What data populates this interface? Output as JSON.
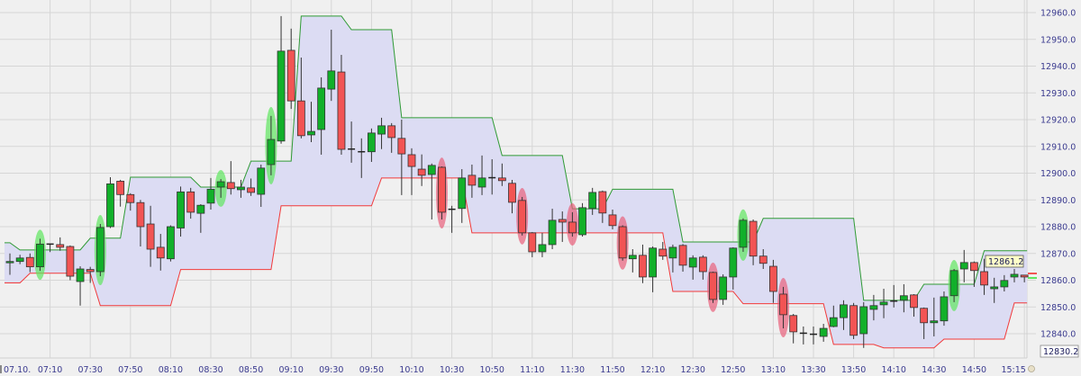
{
  "chart_data": {
    "type": "candlestick",
    "title": "",
    "date_label": "07.10.",
    "ylim": [
      12830,
      12963
    ],
    "y_ticks": [
      12840,
      12850,
      12860,
      12870,
      12880,
      12890,
      12900,
      12910,
      12920,
      12930,
      12940,
      12950,
      12960
    ],
    "y_tick_labels": [
      "12840.0",
      "12850.0",
      "12860.0",
      "12870.0",
      "12880.0",
      "12890.0",
      "12900.0",
      "12910.0",
      "12920.0",
      "12930.0",
      "12940.0",
      "12950.0",
      "12960.0"
    ],
    "x_tick_labels": [
      "07:10",
      "07:30",
      "07:50",
      "08:10",
      "08:30",
      "08:50",
      "09:10",
      "09:30",
      "09:50",
      "10:10",
      "10:30",
      "10:50",
      "11:10",
      "11:30",
      "11:50",
      "12:10",
      "12:30",
      "12:50",
      "13:10",
      "13:30",
      "13:50",
      "14:10",
      "14:30",
      "14:50",
      "15:15"
    ],
    "grid": true,
    "last_price_label": "12861.2",
    "low_price_label": "12830.2",
    "colors": {
      "up": "#12b02a",
      "down": "#f25454",
      "upper_band": "#2f9a35",
      "lower_band": "#f23a3a",
      "band_fill": "#dcdcf3",
      "highlight_up": "#5ee65e",
      "highlight_down": "#e8607a",
      "axis_text": "#3b3b8f",
      "background": "#f0f0f0",
      "grid": "#d6d6d6"
    },
    "ohlc_columns": [
      "time",
      "open",
      "high",
      "low",
      "close"
    ],
    "ohlc": [
      [
        "06:50",
        12866.5,
        12870,
        12862,
        12867
      ],
      [
        "06:55",
        12867,
        12869.5,
        12866,
        12868.3
      ],
      [
        "07:00",
        12868.5,
        12870,
        12863,
        12865
      ],
      [
        "07:05",
        12865,
        12875.5,
        12863.5,
        12873.5
      ],
      [
        "07:10",
        12873.3,
        12873.5,
        12870.5,
        12873.5
      ],
      [
        "07:15",
        12873.3,
        12876,
        12871,
        12872.3
      ],
      [
        "07:20",
        12872.6,
        12873,
        12860,
        12861.5
      ],
      [
        "07:25",
        12859.5,
        12865.2,
        12850.5,
        12864.2
      ],
      [
        "07:30",
        12864,
        12865,
        12859,
        12863.2
      ],
      [
        "07:35",
        12863.2,
        12881,
        12861.5,
        12879.7
      ],
      [
        "07:40",
        12880,
        12898.5,
        12879.5,
        12896
      ],
      [
        "07:45",
        12897,
        12897.5,
        12887.5,
        12892
      ],
      [
        "07:50",
        12892,
        12892.5,
        12886,
        12889
      ],
      [
        "07:55",
        12889,
        12890,
        12872.6,
        12880
      ],
      [
        "08:00",
        12881,
        12887.8,
        12865,
        12871.6
      ],
      [
        "08:05",
        12872.3,
        12877.3,
        12863.6,
        12868.3
      ],
      [
        "08:10",
        12868,
        12880.5,
        12867,
        12880
      ],
      [
        "08:15",
        12879.5,
        12895,
        12876.3,
        12893
      ],
      [
        "08:20",
        12893,
        12894.5,
        12883,
        12885.4
      ],
      [
        "08:25",
        12885,
        12888.4,
        12877.7,
        12888
      ],
      [
        "08:30",
        12888.8,
        12898.2,
        12886.4,
        12894
      ],
      [
        "08:35",
        12894.8,
        12897.8,
        12890.8,
        12896.8
      ],
      [
        "08:40",
        12896.5,
        12904.5,
        12892,
        12894.2
      ],
      [
        "08:45",
        12893.8,
        12897.5,
        12890.8,
        12894.8
      ],
      [
        "08:50",
        12894.5,
        12898,
        12891.5,
        12892.8
      ],
      [
        "08:55",
        12892.1,
        12903.2,
        12887.4,
        12901.9
      ],
      [
        "09:00",
        12903.2,
        12921.4,
        12899.2,
        12912.6
      ],
      [
        "09:05",
        12912,
        12958.7,
        12911,
        12945.6
      ],
      [
        "09:10",
        12945.9,
        12954,
        12924,
        12927
      ],
      [
        "09:15",
        12927,
        12943.2,
        12913,
        12914
      ],
      [
        "09:20",
        12914.3,
        12926.7,
        12911.6,
        12915.6
      ],
      [
        "09:25",
        12916.3,
        12935.8,
        12906.9,
        12931.8
      ],
      [
        "09:30",
        12931.4,
        12953.6,
        12927,
        12938.2
      ],
      [
        "09:35",
        12937.8,
        12944.2,
        12906.9,
        12908.9
      ],
      [
        "09:40",
        12908.9,
        12919.3,
        12903.9,
        12909
      ],
      [
        "09:45",
        12907.9,
        12913,
        12898.2,
        12908
      ],
      [
        "09:50",
        12908,
        12916.7,
        12904.2,
        12915
      ],
      [
        "09:55",
        12914.6,
        12920.7,
        12909,
        12917.7
      ],
      [
        "10:00",
        12917.7,
        12918.7,
        12907.6,
        12913.3
      ],
      [
        "10:05",
        12913,
        12920,
        12891.8,
        12907.2
      ],
      [
        "10:10",
        12906.9,
        12909.3,
        12891.8,
        12902.5
      ],
      [
        "10:15",
        12901.5,
        12907,
        12895.2,
        12899.2
      ],
      [
        "10:20",
        12899.5,
        12903.6,
        12882.7,
        12902.9
      ],
      [
        "10:25",
        12902.2,
        12902.5,
        12882.7,
        12885.4
      ],
      [
        "10:30",
        12886.4,
        12887.8,
        12877.7,
        12886.5
      ],
      [
        "10:35",
        12886.8,
        12901.5,
        12881.4,
        12898.2
      ],
      [
        "10:40",
        12899.2,
        12903.2,
        12890.8,
        12895.5
      ],
      [
        "10:45",
        12894.8,
        12906.6,
        12891.8,
        12898.2
      ],
      [
        "10:50",
        12898.2,
        12905.2,
        12892,
        12898.3
      ],
      [
        "10:55",
        12898.2,
        12903.6,
        12895.2,
        12897.2
      ],
      [
        "11:00",
        12896.2,
        12897.5,
        12885,
        12889.1
      ],
      [
        "11:05",
        12889.8,
        12891.1,
        12876.7,
        12877.7
      ],
      [
        "11:10",
        12877.7,
        12878,
        12868.6,
        12870.6
      ],
      [
        "11:15",
        12870.6,
        12877.7,
        12868.6,
        12873.3
      ],
      [
        "11:20",
        12873.3,
        12886.7,
        12871.6,
        12882.4
      ],
      [
        "11:25",
        12882.7,
        12885.7,
        12874.3,
        12881.7
      ],
      [
        "11:30",
        12881.7,
        12885.4,
        12876.3,
        12877.7
      ],
      [
        "11:35",
        12877,
        12888.8,
        12876.3,
        12887.1
      ],
      [
        "11:40",
        12886.8,
        12894.5,
        12884.4,
        12892.8
      ],
      [
        "11:45",
        12893.1,
        12893.5,
        12881.4,
        12885.1
      ],
      [
        "11:50",
        12884.4,
        12886.4,
        12879,
        12880.4
      ],
      [
        "11:55",
        12880,
        12880.5,
        12867.3,
        12868.3
      ],
      [
        "12:00",
        12868,
        12871.6,
        12862.9,
        12869.3
      ],
      [
        "12:05",
        12869.3,
        12873.3,
        12858.9,
        12861.2
      ],
      [
        "12:10",
        12861.2,
        12872.6,
        12855.5,
        12872
      ],
      [
        "12:15",
        12871.6,
        12874.3,
        12867.6,
        12869
      ],
      [
        "12:20",
        12868.3,
        12873.3,
        12862.9,
        12872.3
      ],
      [
        "12:25",
        12873,
        12873.5,
        12863.2,
        12865.6
      ],
      [
        "12:30",
        12864.9,
        12869.3,
        12860.2,
        12868.3
      ],
      [
        "12:35",
        12868.6,
        12869.3,
        12860.2,
        12863.2
      ],
      [
        "12:40",
        12862.9,
        12863.2,
        12851.5,
        12852.8
      ],
      [
        "12:45",
        12852.8,
        12862.2,
        12850.8,
        12861.2
      ],
      [
        "12:50",
        12861.2,
        12872.3,
        12856.5,
        12872
      ],
      [
        "12:55",
        12872.3,
        12883.1,
        12870.6,
        12882.4
      ],
      [
        "13:00",
        12882,
        12882.7,
        12865.6,
        12869
      ],
      [
        "13:05",
        12869,
        12871.6,
        12864.2,
        12866.3
      ],
      [
        "13:10",
        12865.2,
        12867.6,
        12851.5,
        12855.8
      ],
      [
        "13:15",
        12854.8,
        12857.5,
        12842,
        12847.1
      ],
      [
        "13:20",
        12846.8,
        12847.4,
        12836.4,
        12840.7
      ],
      [
        "13:25",
        12840,
        12842.7,
        12836,
        12840.2
      ],
      [
        "13:30",
        12839.7,
        12842.7,
        12836,
        12839.8
      ],
      [
        "13:35",
        12839,
        12843.7,
        12837,
        12842
      ],
      [
        "13:40",
        12842.7,
        12850.5,
        12842.4,
        12846
      ],
      [
        "13:45",
        12846,
        12852.5,
        12841.4,
        12850.8
      ],
      [
        "13:50",
        12850.5,
        12851.5,
        12838,
        12839.4
      ],
      [
        "13:55",
        12840,
        12851.8,
        12834.7,
        12850.1
      ],
      [
        "14:00",
        12849.1,
        12854.5,
        12845,
        12850.5
      ],
      [
        "14:05",
        12850.8,
        12856.8,
        12845.8,
        12851.8
      ],
      [
        "14:10",
        12852,
        12858.2,
        12849.8,
        12852.2
      ],
      [
        "14:15",
        12852.5,
        12858.5,
        12848,
        12854.2
      ],
      [
        "14:20",
        12854.5,
        12854.8,
        12846.4,
        12849.8
      ],
      [
        "14:25",
        12849.5,
        12849.8,
        12838,
        12844.1
      ],
      [
        "14:30",
        12844.1,
        12853.5,
        12839,
        12844.8
      ],
      [
        "14:35",
        12844.8,
        12855.8,
        12843,
        12853.8
      ],
      [
        "14:40",
        12854.2,
        12864.2,
        12851.8,
        12863.6
      ],
      [
        "14:45",
        12864.2,
        12871.3,
        12859.2,
        12866.6
      ],
      [
        "14:50",
        12866.6,
        12867,
        12857.5,
        12863.6
      ],
      [
        "14:55",
        12863.2,
        12868,
        12854.5,
        12858.2
      ],
      [
        "15:00",
        12856.8,
        12860.9,
        12851.5,
        12857.5
      ],
      [
        "15:05",
        12857.5,
        12861.9,
        12855.8,
        12859.9
      ],
      [
        "15:10",
        12861.2,
        12864.2,
        12859.2,
        12862.2
      ],
      [
        "15:15",
        12861.9,
        12862,
        12859.2,
        12861.2
      ]
    ],
    "upper_band": [
      12874,
      12871.3,
      12871.3,
      12871.3,
      12871.3,
      12871.3,
      12871.3,
      12871.3,
      12875.7,
      12875.7,
      12875.7,
      12875.7,
      12898.5,
      12898.5,
      12898.5,
      12898.5,
      12898.5,
      12898.5,
      12898.5,
      12894.8,
      12894.8,
      12894.8,
      12894.8,
      12894.8,
      12904.5,
      12904.5,
      12904.5,
      12904.5,
      12904.5,
      12958.7,
      12958.7,
      12958.7,
      12958.7,
      12958.7,
      12953.6,
      12953.6,
      12953.6,
      12953.6,
      12953.6,
      12920.7,
      12920.7,
      12920.7,
      12920.7,
      12920.7,
      12920.7,
      12920.7,
      12920.7,
      12920.7,
      12920.7,
      12906.6,
      12906.6,
      12906.6,
      12906.6,
      12906.6,
      12906.6,
      12906.6,
      12886.7,
      12886.7,
      12886.7,
      12886.7,
      12894,
      12894,
      12894,
      12894,
      12894,
      12894,
      12894,
      12874.3,
      12874.3,
      12874.3,
      12874.3,
      12874.3,
      12874.3,
      12874.3,
      12874.3,
      12883.1,
      12883.1,
      12883.1,
      12883.1,
      12883.1,
      12883.1,
      12883.1,
      12883.1,
      12883.1,
      12883.1,
      12852.5,
      12852.5,
      12852.5,
      12852.5,
      12852.5,
      12852.5,
      12858.5,
      12858.5,
      12858.5,
      12858.5,
      12858.5,
      12858.5,
      12871,
      12871,
      12871,
      12871,
      12871
    ],
    "lower_band": [
      12859,
      12859,
      12862.6,
      12862.6,
      12862.6,
      12862.6,
      12862.6,
      12862.6,
      12862.6,
      12850.5,
      12850.5,
      12850.5,
      12850.5,
      12850.5,
      12850.5,
      12850.5,
      12850.5,
      12864,
      12864,
      12864,
      12864,
      12864,
      12864,
      12864,
      12864,
      12864,
      12864,
      12887.8,
      12887.8,
      12887.8,
      12887.8,
      12887.8,
      12887.8,
      12887.8,
      12887.8,
      12887.8,
      12887.8,
      12898.2,
      12898.2,
      12898.2,
      12898.2,
      12898.2,
      12898.2,
      12898.2,
      12898.2,
      12898.2,
      12877.7,
      12877.7,
      12877.7,
      12877.7,
      12877.7,
      12877.7,
      12877.7,
      12877.7,
      12877.7,
      12877.7,
      12877.7,
      12877.7,
      12877.7,
      12877.7,
      12877.7,
      12877.7,
      12877.7,
      12877.7,
      12877.7,
      12877.7,
      12855.8,
      12855.8,
      12855.8,
      12855.8,
      12855.8,
      12855.8,
      12855.8,
      12851.2,
      12851.2,
      12851.2,
      12851.2,
      12851.2,
      12851.2,
      12851.2,
      12851.2,
      12851.2,
      12836,
      12836,
      12836,
      12836,
      12836,
      12834.7,
      12834.7,
      12834.7,
      12834.7,
      12834.7,
      12834.7,
      12838,
      12838,
      12838,
      12838,
      12838,
      12838,
      12838,
      12851.5,
      12851.5
    ],
    "highlights_up": [
      "07:05",
      "07:35",
      "08:35",
      "09:00",
      "12:55",
      "14:40"
    ],
    "highlights_down": [
      "10:25",
      "11:05",
      "11:30",
      "11:55",
      "12:40",
      "13:15"
    ]
  }
}
